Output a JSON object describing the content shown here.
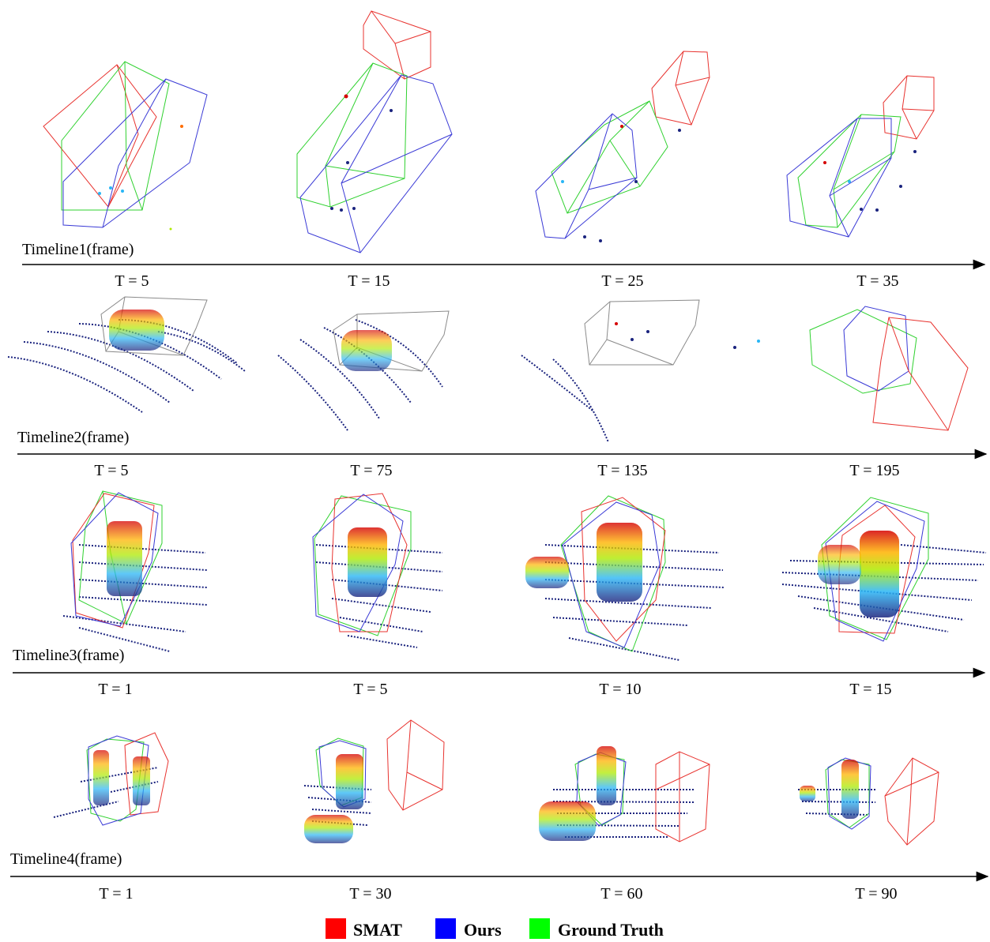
{
  "timelines": [
    {
      "label": "Timeline1(frame)",
      "frames": [
        "T = 5",
        "T = 15",
        "T = 25",
        "T = 35"
      ]
    },
    {
      "label": "Timeline2(frame)",
      "frames": [
        "T = 5",
        "T = 75",
        "T = 135",
        "T = 195"
      ]
    },
    {
      "label": "Timeline3(frame)",
      "frames": [
        "T = 1",
        "T = 5",
        "T = 10",
        "T = 15"
      ]
    },
    {
      "label": "Timeline4(frame)",
      "frames": [
        "T = 1",
        "T = 30",
        "T = 60",
        "T = 90"
      ]
    }
  ],
  "legend": [
    {
      "label": "SMAT",
      "color": "#ff0000"
    },
    {
      "label": "Ours",
      "color": "#0000ff"
    },
    {
      "label": "Ground Truth",
      "color": "#00ff00"
    }
  ],
  "colors": {
    "smat_box": "#e8332f",
    "ours_box": "#3a3ad6",
    "gt_box": "#2fd12f",
    "scan_lines": "#1a237e",
    "axis": "#000000"
  }
}
